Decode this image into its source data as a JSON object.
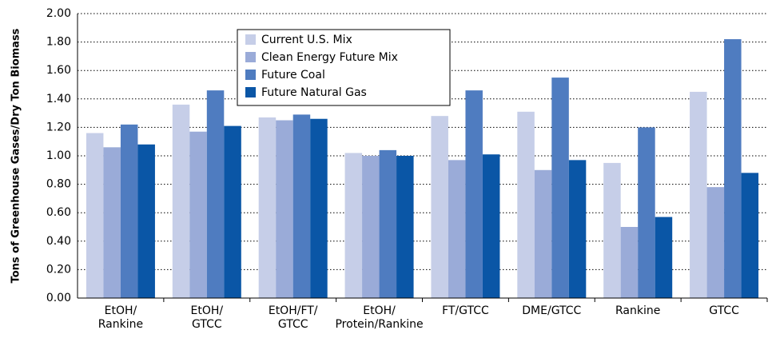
{
  "chart_data": {
    "type": "bar",
    "y_label": "Tons of Greenhouse Gases/Dry Ton Biomass",
    "categories": [
      "EtOH/\nRankine",
      "EtOH/\nGTCC",
      "EtOH/FT/\nGTCC",
      "EtOH/\nProtein/Rankine",
      "FT/GTCC",
      "DME/GTCC",
      "Rankine",
      "GTCC"
    ],
    "series": [
      {
        "name": "Current U.S. Mix",
        "color": "#c6cee8",
        "values": [
          1.16,
          1.36,
          1.27,
          1.02,
          1.28,
          1.31,
          0.95,
          1.45
        ]
      },
      {
        "name": "Clean Energy Future Mix",
        "color": "#9aabd8",
        "values": [
          1.06,
          1.17,
          1.25,
          1.0,
          0.97,
          0.9,
          0.5,
          0.78
        ]
      },
      {
        "name": "Future Coal",
        "color": "#4f7cc0",
        "values": [
          1.22,
          1.46,
          1.29,
          1.04,
          1.46,
          1.55,
          1.2,
          1.82
        ]
      },
      {
        "name": "Future Natural Gas",
        "color": "#0a56a6",
        "values": [
          1.08,
          1.21,
          1.26,
          1.0,
          1.01,
          0.97,
          0.57,
          0.88
        ]
      }
    ],
    "ylim": [
      0,
      2
    ],
    "yticks": [
      {
        "value": 0,
        "label": "0.00"
      },
      {
        "value": 0.2,
        "label": "0.20"
      },
      {
        "value": 0.4,
        "label": "0.40"
      },
      {
        "value": 0.6,
        "label": "0.60"
      },
      {
        "value": 0.8,
        "label": "0.80"
      },
      {
        "value": 1,
        "label": "1.00"
      },
      {
        "value": 1.2,
        "label": "1.20"
      },
      {
        "value": 1.4,
        "label": "1.40"
      },
      {
        "value": 1.6,
        "label": "1.60"
      },
      {
        "value": 1.8,
        "label": "1.80"
      },
      {
        "value": 2,
        "label": "2.00"
      }
    ],
    "grid": true
  }
}
